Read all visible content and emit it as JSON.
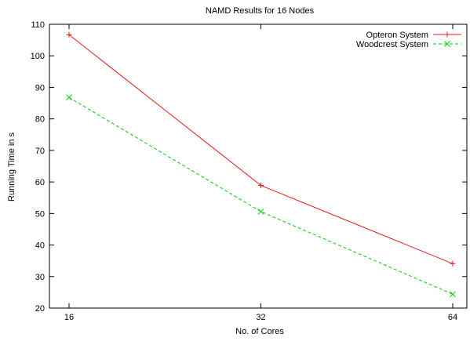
{
  "chart_data": {
    "type": "line",
    "title": "NAMD Results for 16 Nodes",
    "xlabel": "No. of Cores",
    "ylabel": "Running Time in s",
    "x": [
      16,
      32,
      64
    ],
    "x_tick_labels": [
      "16",
      "32",
      "64"
    ],
    "ylim": [
      20,
      110
    ],
    "y_ticks": [
      20,
      30,
      40,
      50,
      60,
      70,
      80,
      90,
      100,
      110
    ],
    "grid": false,
    "legend_position": "top-right",
    "series": [
      {
        "name": "Opteron System",
        "values": [
          106.7,
          58.9,
          34.1
        ],
        "color": "#e41a1c",
        "line_style": "solid",
        "marker": "plus"
      },
      {
        "name": "Woodcrest System",
        "values": [
          86.8,
          50.6,
          24.4
        ],
        "color": "#00cc00",
        "line_style": "dashed",
        "marker": "cross"
      }
    ]
  }
}
